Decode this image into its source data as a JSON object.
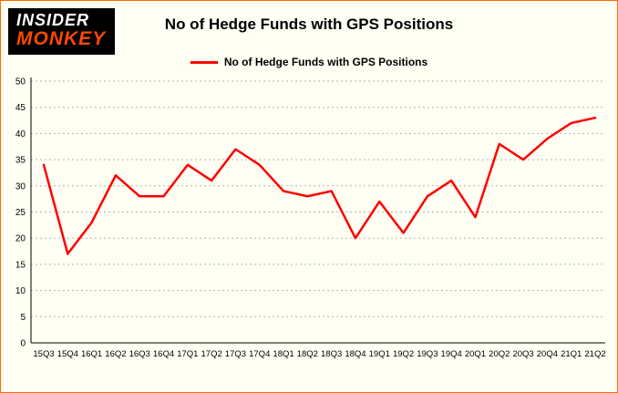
{
  "logo": {
    "top": "INSIDER",
    "bottom": "MONKEY"
  },
  "title": "No of Hedge Funds with GPS Positions",
  "legend": {
    "label": "No of Hedge Funds with GPS Positions"
  },
  "chart_data": {
    "type": "line",
    "title": "No of Hedge Funds with GPS Positions",
    "categories": [
      "15Q3",
      "15Q4",
      "16Q1",
      "16Q2",
      "16Q3",
      "16Q4",
      "17Q1",
      "17Q2",
      "17Q3",
      "17Q4",
      "18Q1",
      "18Q2",
      "18Q3",
      "18Q4",
      "19Q1",
      "19Q2",
      "19Q3",
      "19Q4",
      "20Q1",
      "20Q2",
      "20Q3",
      "20Q4",
      "21Q1",
      "21Q2"
    ],
    "series": [
      {
        "name": "No of Hedge Funds with GPS Positions",
        "color": "#fe0000",
        "values": [
          34,
          17,
          23,
          32,
          28,
          28,
          34,
          31,
          37,
          34,
          29,
          28,
          29,
          20,
          27,
          21,
          28,
          31,
          24,
          38,
          35,
          39,
          42,
          43
        ]
      }
    ],
    "ylim": [
      0,
      50
    ],
    "ytick_step": 5,
    "grid": true,
    "legend_position": "top"
  },
  "style": {
    "line_color": "#fe0000",
    "border_color": "#ff6a00",
    "background": "#fffff4",
    "grid_color": "#b3b3b3",
    "axis_color": "#000000",
    "logo_monkey_color": "#ff4800"
  }
}
